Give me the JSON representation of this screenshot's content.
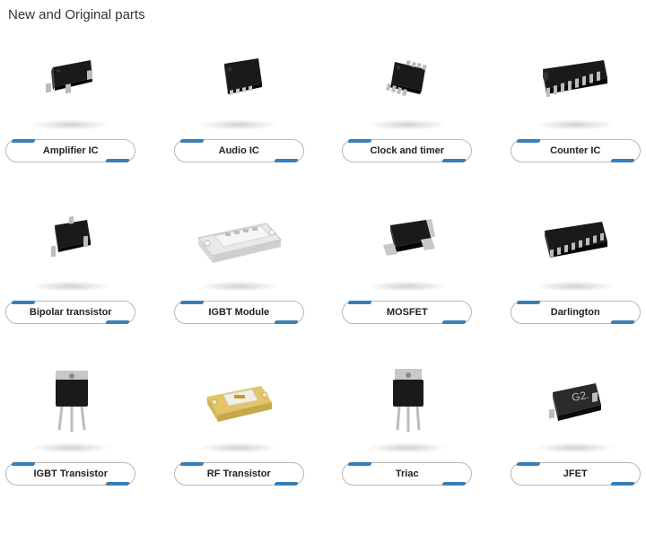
{
  "title": "New and Original parts",
  "accent_color": "#3a7fb5",
  "pill_border": "#b7b7b7",
  "items": [
    {
      "label": "Amplifier IC",
      "icon": "sot23-3"
    },
    {
      "label": "Audio IC",
      "icon": "qfn8"
    },
    {
      "label": "Clock and timer",
      "icon": "ssop8"
    },
    {
      "label": "Counter IC",
      "icon": "dip16"
    },
    {
      "label": "Bipolar transistor",
      "icon": "sot23-3b"
    },
    {
      "label": "IGBT Module",
      "icon": "module"
    },
    {
      "label": "MOSFET",
      "icon": "dpak"
    },
    {
      "label": "Darlington",
      "icon": "soic16"
    },
    {
      "label": "IGBT Transistor",
      "icon": "to247"
    },
    {
      "label": "RF Transistor",
      "icon": "rfgold"
    },
    {
      "label": "Triac",
      "icon": "to220"
    },
    {
      "label": "JFET",
      "icon": "sot23-mark"
    }
  ]
}
